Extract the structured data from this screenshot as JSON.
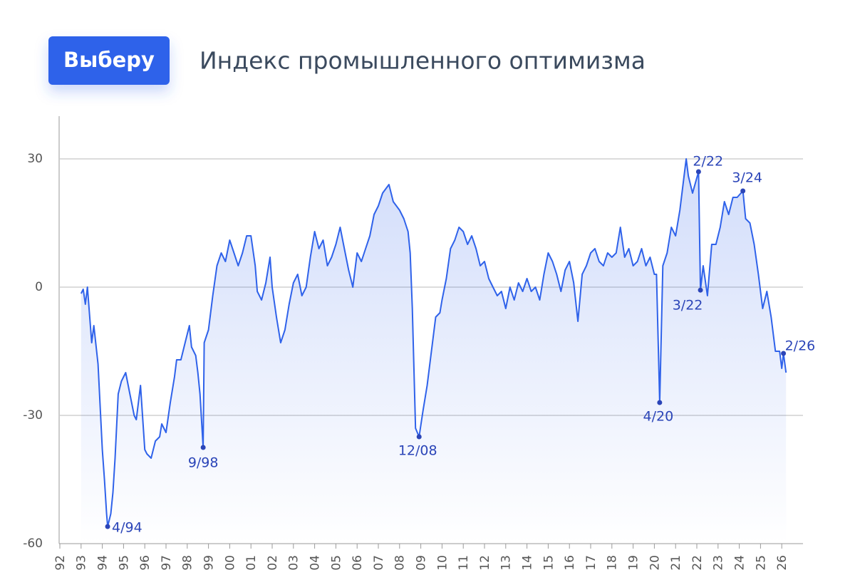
{
  "logo": "Выберу",
  "chart_data": {
    "type": "line",
    "title": "Индекс промышленного оптимизма",
    "xlim": [
      1992,
      2027
    ],
    "ylim": [
      -60,
      40
    ],
    "yticks": [
      -60,
      -30,
      0,
      30
    ],
    "xticks": [
      {
        "value": 1992,
        "label": "92"
      },
      {
        "value": 1993,
        "label": "93"
      },
      {
        "value": 1994,
        "label": "94"
      },
      {
        "value": 1995,
        "label": "95"
      },
      {
        "value": 1996,
        "label": "96"
      },
      {
        "value": 1997,
        "label": "97"
      },
      {
        "value": 1998,
        "label": "98"
      },
      {
        "value": 1999,
        "label": "99"
      },
      {
        "value": 2000,
        "label": "00"
      },
      {
        "value": 2001,
        "label": "01"
      },
      {
        "value": 2002,
        "label": "02"
      },
      {
        "value": 2003,
        "label": "03"
      },
      {
        "value": 2004,
        "label": "04"
      },
      {
        "value": 2005,
        "label": "05"
      },
      {
        "value": 2006,
        "label": "06"
      },
      {
        "value": 2007,
        "label": "07"
      },
      {
        "value": 2008,
        "label": "08"
      },
      {
        "value": 2009,
        "label": "09"
      },
      {
        "value": 2010,
        "label": "10"
      },
      {
        "value": 2011,
        "label": "11"
      },
      {
        "value": 2012,
        "label": "12"
      },
      {
        "value": 2013,
        "label": "13"
      },
      {
        "value": 2014,
        "label": "14"
      },
      {
        "value": 2015,
        "label": "15"
      },
      {
        "value": 2016,
        "label": "16"
      },
      {
        "value": 2017,
        "label": "17"
      },
      {
        "value": 2018,
        "label": "18"
      },
      {
        "value": 2019,
        "label": "19"
      },
      {
        "value": 2020,
        "label": "20"
      },
      {
        "value": 2021,
        "label": "21"
      },
      {
        "value": 2022,
        "label": "22"
      },
      {
        "value": 2023,
        "label": "23"
      },
      {
        "value": 2024,
        "label": "24"
      },
      {
        "value": 2025,
        "label": "25"
      },
      {
        "value": 2026,
        "label": "26"
      }
    ],
    "color": "#2f62ea",
    "x": [
      1993.0,
      1993.1,
      1993.2,
      1993.3,
      1993.5,
      1993.6,
      1993.8,
      1994.0,
      1994.1,
      1994.2,
      1994.25,
      1994.4,
      1994.5,
      1994.6,
      1994.75,
      1994.9,
      1995.1,
      1995.3,
      1995.5,
      1995.6,
      1995.8,
      1996.0,
      1996.1,
      1996.3,
      1996.5,
      1996.7,
      1996.8,
      1997.0,
      1997.2,
      1997.4,
      1997.5,
      1997.7,
      1997.9,
      1998.1,
      1998.2,
      1998.4,
      1998.5,
      1998.6,
      1998.75,
      1998.8,
      1999.0,
      1999.2,
      1999.4,
      1999.6,
      1999.8,
      2000.0,
      2000.2,
      2000.4,
      2000.6,
      2000.8,
      2001.0,
      2001.2,
      2001.3,
      2001.5,
      2001.7,
      2001.9,
      2002.0,
      2002.2,
      2002.4,
      2002.6,
      2002.8,
      2003.0,
      2003.2,
      2003.4,
      2003.6,
      2003.8,
      2004.0,
      2004.2,
      2004.4,
      2004.6,
      2004.8,
      2005.0,
      2005.2,
      2005.4,
      2005.6,
      2005.8,
      2006.0,
      2006.2,
      2006.4,
      2006.6,
      2006.8,
      2007.0,
      2007.2,
      2007.5,
      2007.7,
      2008.0,
      2008.2,
      2008.4,
      2008.5,
      2008.6,
      2008.75,
      2008.92,
      2009.1,
      2009.3,
      2009.5,
      2009.7,
      2009.9,
      2010.0,
      2010.2,
      2010.4,
      2010.6,
      2010.8,
      2011.0,
      2011.2,
      2011.4,
      2011.6,
      2011.8,
      2012.0,
      2012.2,
      2012.4,
      2012.6,
      2012.8,
      2013.0,
      2013.2,
      2013.4,
      2013.6,
      2013.8,
      2014.0,
      2014.2,
      2014.4,
      2014.6,
      2014.8,
      2015.0,
      2015.2,
      2015.4,
      2015.6,
      2015.8,
      2016.0,
      2016.2,
      2016.4,
      2016.6,
      2016.8,
      2017.0,
      2017.2,
      2017.4,
      2017.6,
      2017.8,
      2018.0,
      2018.2,
      2018.4,
      2018.6,
      2018.8,
      2019.0,
      2019.2,
      2019.4,
      2019.6,
      2019.8,
      2020.0,
      2020.1,
      2020.25,
      2020.4,
      2020.6,
      2020.8,
      2021.0,
      2021.2,
      2021.4,
      2021.5,
      2021.6,
      2021.8,
      2022.08,
      2022.17,
      2022.3,
      2022.5,
      2022.7,
      2022.9,
      2023.1,
      2023.3,
      2023.5,
      2023.7,
      2023.9,
      2024.17,
      2024.3,
      2024.5,
      2024.7,
      2024.9,
      2025.1,
      2025.3,
      2025.5,
      2025.7,
      2025.9,
      2026.0,
      2026.08,
      2026.2
    ],
    "values": [
      -1.5,
      -0.5,
      -4,
      0,
      -13,
      -9,
      -18,
      -38,
      -45,
      -53,
      -56,
      -53,
      -48,
      -40,
      -25,
      -22,
      -20,
      -25,
      -30,
      -31,
      -23,
      -38,
      -39,
      -40,
      -36,
      -35,
      -32,
      -34,
      -27,
      -21,
      -17,
      -17,
      -13,
      -9,
      -14,
      -16,
      -20,
      -25,
      -37.5,
      -13,
      -10,
      -2,
      5,
      8,
      6,
      11,
      8,
      5,
      8,
      12,
      12,
      5,
      -1,
      -3,
      1,
      7,
      0,
      -7,
      -13,
      -10,
      -4,
      1,
      3,
      -2,
      0,
      7,
      13,
      9,
      11,
      5,
      7,
      10,
      14,
      9,
      4,
      0,
      8,
      6,
      9,
      12,
      17,
      19,
      22,
      24,
      20,
      18,
      16,
      13,
      8,
      -5,
      -33,
      -35,
      -29,
      -23,
      -15,
      -7,
      -6,
      -3,
      2,
      9,
      11,
      14,
      13,
      10,
      12,
      9,
      5,
      6,
      2,
      0,
      -2,
      -1,
      -5,
      0,
      -3,
      1,
      -1,
      2,
      -1,
      0,
      -3,
      3,
      8,
      6,
      3,
      -1,
      4,
      6,
      1,
      -8,
      3,
      5,
      8,
      9,
      6,
      5,
      8,
      7,
      8,
      14,
      7,
      9,
      5,
      6,
      9,
      5,
      7,
      3,
      3,
      -27,
      5,
      8,
      14,
      12,
      18,
      26,
      30,
      26,
      22,
      27,
      -0.7,
      5,
      -2,
      10,
      10,
      14,
      20,
      17,
      21,
      21,
      22.5,
      16,
      15,
      10,
      3,
      -5,
      -1,
      -7,
      -15,
      -15,
      -19,
      -15.5,
      -20
    ],
    "annotations": [
      {
        "label": "4/94",
        "x": 1994.25,
        "y": -56
      },
      {
        "label": "9/98",
        "x": 1998.75,
        "y": -37.5
      },
      {
        "label": "12/08",
        "x": 2008.92,
        "y": -35
      },
      {
        "label": "4/20",
        "x": 2020.25,
        "y": -27
      },
      {
        "label": "2/22",
        "x": 2022.08,
        "y": 27
      },
      {
        "label": "3/22",
        "x": 2022.17,
        "y": -0.7
      },
      {
        "label": "3/24",
        "x": 2024.17,
        "y": 22.5
      },
      {
        "label": "2/26",
        "x": 2026.08,
        "y": -15.5
      }
    ]
  }
}
